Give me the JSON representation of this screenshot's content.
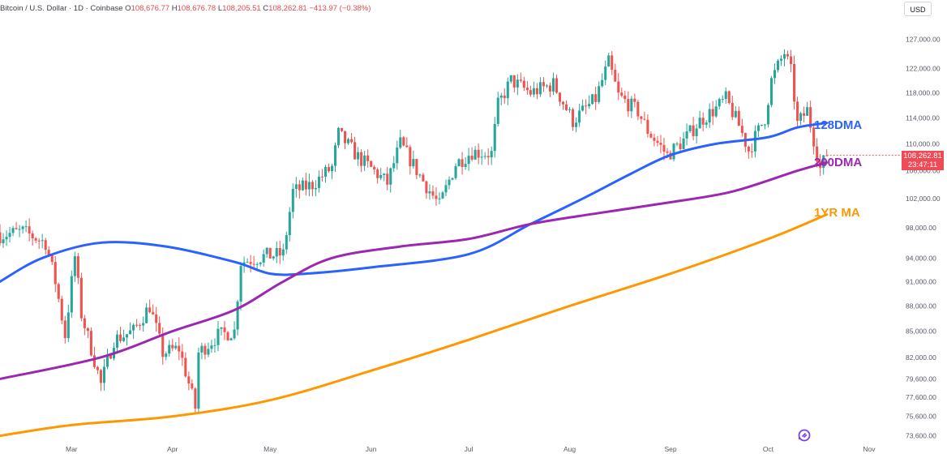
{
  "header": {
    "symbol": "Bitcoin / U.S. Dollar · 1D · Coinbase",
    "o_label": "O",
    "o_value": "108,676.77",
    "h_label": "H",
    "h_value": "108,676.78",
    "l_label": "L",
    "l_value": "108,205.51",
    "c_label": "C",
    "c_value": "108,262.81",
    "change": "−413.97 (−0.38%)"
  },
  "currency_button": "USD",
  "price_tag": {
    "price": "108,262.81",
    "countdown": "23:47:11"
  },
  "labels": {
    "ma128": "128DMA",
    "ma200": "200DMA",
    "ma1y": "1YR MA"
  },
  "colors": {
    "up": "#26a69a",
    "down": "#ef5350",
    "ma128": "#2962ff",
    "ma200": "#9c27b0",
    "ma1y": "#ff9800",
    "tag": "#ef4a55",
    "axis_text": "#555a66",
    "header_value": "#e5484d"
  },
  "chart_data": {
    "type": "candlestick",
    "scale": "log",
    "ylim": [
      73000,
      128500
    ],
    "y_ticks": [
      "127,000.00",
      "122,000.00",
      "118,000.00",
      "114,000.00",
      "110,000.00",
      "106,000.00",
      "102,000.00",
      "98,000.00",
      "94,000.00",
      "91,000.00",
      "88,000.00",
      "85,000.00",
      "82,000.00",
      "79,600.00",
      "77,600.00",
      "75,600.00",
      "73,600.00"
    ],
    "x_ticks": [
      {
        "label": "Mar",
        "date": "2025-03-01"
      },
      {
        "label": "Apr",
        "date": "2025-04-01"
      },
      {
        "label": "May",
        "date": "2025-05-01"
      },
      {
        "label": "Jun",
        "date": "2025-06-01"
      },
      {
        "label": "Jul",
        "date": "2025-07-01"
      },
      {
        "label": "Aug",
        "date": "2025-08-01"
      },
      {
        "label": "Sep",
        "date": "2025-09-01"
      },
      {
        "label": "Oct",
        "date": "2025-10-01"
      },
      {
        "label": "Nov",
        "date": "2025-11-01"
      }
    ],
    "xlim": [
      "2025-02-07",
      "2025-11-08"
    ],
    "price_path": [
      {
        "date": "2025-02-07",
        "close": 97000
      },
      {
        "date": "2025-02-14",
        "close": 97500
      },
      {
        "date": "2025-02-21",
        "close": 96000
      },
      {
        "date": "2025-02-24",
        "close": 91000
      },
      {
        "date": "2025-02-27",
        "close": 84500
      },
      {
        "date": "2025-03-02",
        "close": 94200
      },
      {
        "date": "2025-03-04",
        "close": 87000
      },
      {
        "date": "2025-03-10",
        "close": 79000
      },
      {
        "date": "2025-03-14",
        "close": 84000
      },
      {
        "date": "2025-03-20",
        "close": 85000
      },
      {
        "date": "2025-03-25",
        "close": 88000
      },
      {
        "date": "2025-03-29",
        "close": 82500
      },
      {
        "date": "2025-04-03",
        "close": 83000
      },
      {
        "date": "2025-04-08",
        "close": 76500
      },
      {
        "date": "2025-04-09",
        "close": 82500
      },
      {
        "date": "2025-04-15",
        "close": 84500
      },
      {
        "date": "2025-04-20",
        "close": 85000
      },
      {
        "date": "2025-04-22",
        "close": 93500
      },
      {
        "date": "2025-04-30",
        "close": 94300
      },
      {
        "date": "2025-05-05",
        "close": 94500
      },
      {
        "date": "2025-05-08",
        "close": 103000
      },
      {
        "date": "2025-05-14",
        "close": 104000
      },
      {
        "date": "2025-05-20",
        "close": 106500
      },
      {
        "date": "2025-05-22",
        "close": 111500
      },
      {
        "date": "2025-05-28",
        "close": 108000
      },
      {
        "date": "2025-06-03",
        "close": 105500
      },
      {
        "date": "2025-06-06",
        "close": 104200
      },
      {
        "date": "2025-06-10",
        "close": 110000
      },
      {
        "date": "2025-06-17",
        "close": 104500
      },
      {
        "date": "2025-06-22",
        "close": 101000
      },
      {
        "date": "2025-06-27",
        "close": 107000
      },
      {
        "date": "2025-07-02",
        "close": 108800
      },
      {
        "date": "2025-07-08",
        "close": 108500
      },
      {
        "date": "2025-07-10",
        "close": 116000
      },
      {
        "date": "2025-07-14",
        "close": 120000
      },
      {
        "date": "2025-07-20",
        "close": 118000
      },
      {
        "date": "2025-07-27",
        "close": 119400
      },
      {
        "date": "2025-08-02",
        "close": 113500
      },
      {
        "date": "2025-08-09",
        "close": 117000
      },
      {
        "date": "2025-08-13",
        "close": 123000
      },
      {
        "date": "2025-08-16",
        "close": 117500
      },
      {
        "date": "2025-08-22",
        "close": 115000
      },
      {
        "date": "2025-08-25",
        "close": 112000
      },
      {
        "date": "2025-08-31",
        "close": 108300
      },
      {
        "date": "2025-09-05",
        "close": 110500
      },
      {
        "date": "2025-09-10",
        "close": 113500
      },
      {
        "date": "2025-09-15",
        "close": 115500
      },
      {
        "date": "2025-09-18",
        "close": 117000
      },
      {
        "date": "2025-09-22",
        "close": 112800
      },
      {
        "date": "2025-09-25",
        "close": 109000
      },
      {
        "date": "2025-09-30",
        "close": 114000
      },
      {
        "date": "2025-10-02",
        "close": 120000
      },
      {
        "date": "2025-10-06",
        "close": 124700
      },
      {
        "date": "2025-10-08",
        "close": 121500
      },
      {
        "date": "2025-10-10",
        "close": 113000
      },
      {
        "date": "2025-10-13",
        "close": 115200
      },
      {
        "date": "2025-10-16",
        "close": 108500
      },
      {
        "date": "2025-10-17",
        "close": 106300
      },
      {
        "date": "2025-10-19",
        "close": 108262.81
      }
    ],
    "series": [
      {
        "name": "128DMA",
        "color": "#2962ff",
        "points": [
          {
            "date": "2025-02-07",
            "value": 91000
          },
          {
            "date": "2025-02-20",
            "value": 94000
          },
          {
            "date": "2025-03-10",
            "value": 96000
          },
          {
            "date": "2025-03-30",
            "value": 95500
          },
          {
            "date": "2025-04-20",
            "value": 93500
          },
          {
            "date": "2025-05-01",
            "value": 92000
          },
          {
            "date": "2025-05-12",
            "value": 92000
          },
          {
            "date": "2025-06-01",
            "value": 92800
          },
          {
            "date": "2025-07-01",
            "value": 94500
          },
          {
            "date": "2025-07-20",
            "value": 98500
          },
          {
            "date": "2025-08-05",
            "value": 102000
          },
          {
            "date": "2025-08-20",
            "value": 105600
          },
          {
            "date": "2025-09-01",
            "value": 108300
          },
          {
            "date": "2025-09-15",
            "value": 110000
          },
          {
            "date": "2025-10-01",
            "value": 111000
          },
          {
            "date": "2025-10-10",
            "value": 112500
          },
          {
            "date": "2025-10-19",
            "value": 113200
          }
        ]
      },
      {
        "name": "200DMA",
        "color": "#9c27b0",
        "points": [
          {
            "date": "2025-02-07",
            "value": 79600
          },
          {
            "date": "2025-03-10",
            "value": 82000
          },
          {
            "date": "2025-04-01",
            "value": 85000
          },
          {
            "date": "2025-04-20",
            "value": 87500
          },
          {
            "date": "2025-05-05",
            "value": 91000
          },
          {
            "date": "2025-05-20",
            "value": 94000
          },
          {
            "date": "2025-06-10",
            "value": 95500
          },
          {
            "date": "2025-07-01",
            "value": 96500
          },
          {
            "date": "2025-07-20",
            "value": 98500
          },
          {
            "date": "2025-08-10",
            "value": 100000
          },
          {
            "date": "2025-09-01",
            "value": 101500
          },
          {
            "date": "2025-09-20",
            "value": 103000
          },
          {
            "date": "2025-10-10",
            "value": 106000
          },
          {
            "date": "2025-10-19",
            "value": 107200
          }
        ]
      },
      {
        "name": "1YR MA",
        "color": "#ff9800",
        "points": [
          {
            "date": "2025-02-07",
            "value": 73600
          },
          {
            "date": "2025-03-01",
            "value": 74700
          },
          {
            "date": "2025-04-01",
            "value": 75600
          },
          {
            "date": "2025-05-01",
            "value": 77300
          },
          {
            "date": "2025-06-01",
            "value": 80500
          },
          {
            "date": "2025-07-01",
            "value": 84000
          },
          {
            "date": "2025-08-01",
            "value": 88000
          },
          {
            "date": "2025-09-01",
            "value": 92000
          },
          {
            "date": "2025-10-01",
            "value": 96500
          },
          {
            "date": "2025-10-19",
            "value": 99800
          }
        ]
      }
    ]
  }
}
